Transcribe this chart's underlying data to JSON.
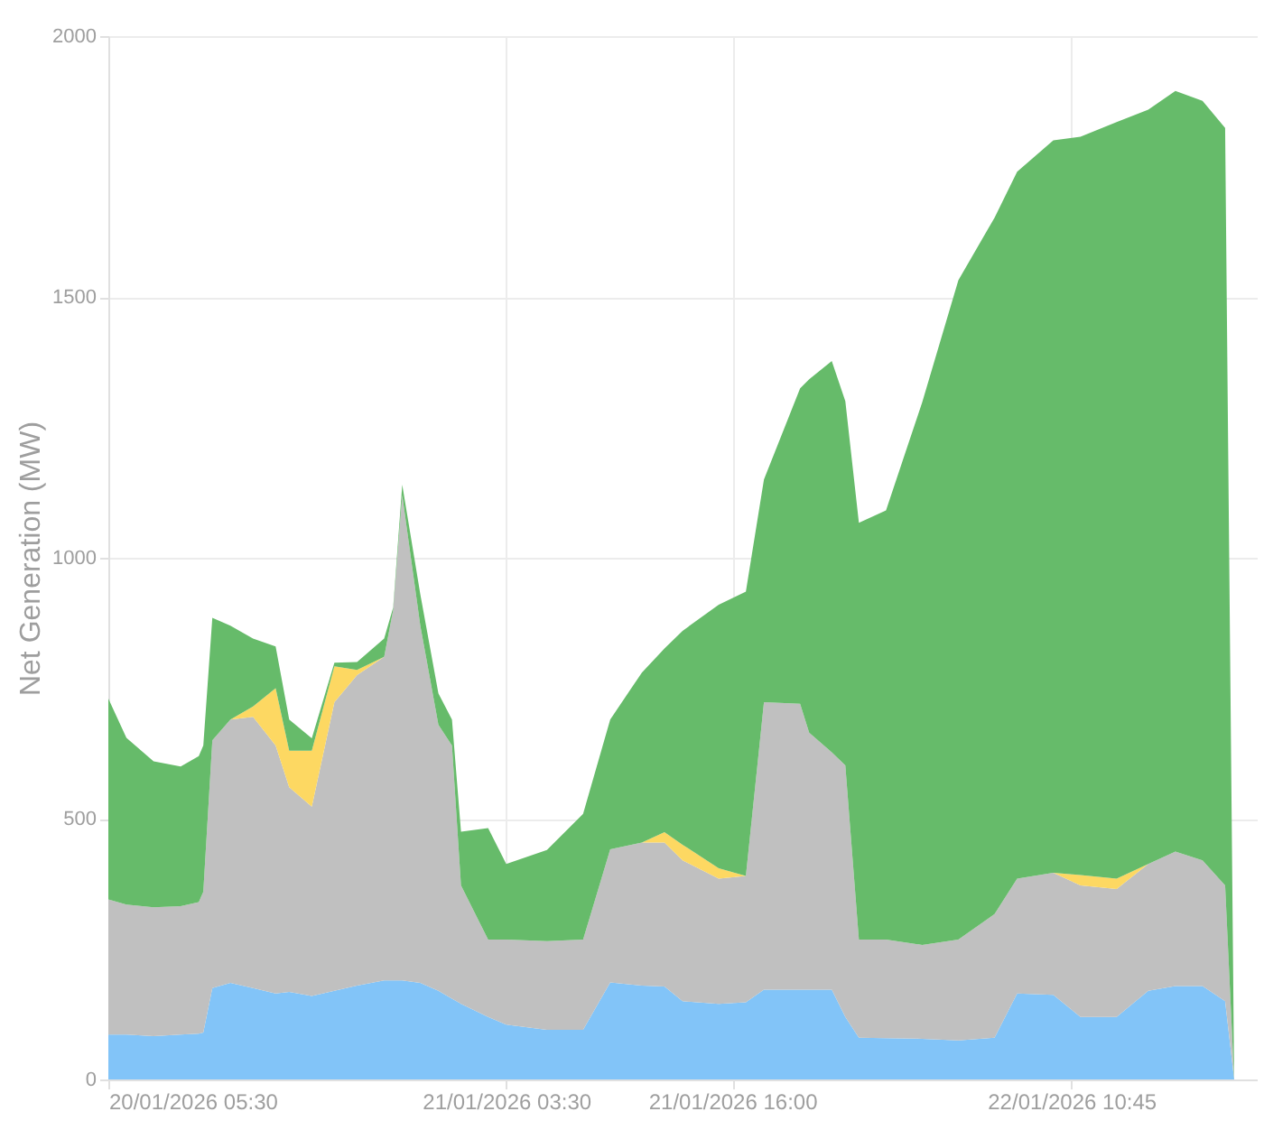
{
  "chart_data": {
    "type": "area",
    "stacked": true,
    "ylabel": "Net Generation (MW)",
    "x": [
      "2026-01-20T05:30",
      "2026-01-20T06:30",
      "2026-01-20T08:00",
      "2026-01-20T09:30",
      "2026-01-20T10:30",
      "2026-01-20T10:45",
      "2026-01-20T11:15",
      "2026-01-20T12:15",
      "2026-01-20T13:30",
      "2026-01-20T14:45",
      "2026-01-20T15:30",
      "2026-01-20T16:45",
      "2026-01-20T18:00",
      "2026-01-20T19:15",
      "2026-01-20T20:45",
      "2026-01-20T21:15",
      "2026-01-20T21:45",
      "2026-01-20T22:45",
      "2026-01-20T23:45",
      "2026-01-21T00:30",
      "2026-01-21T01:00",
      "2026-01-21T02:30",
      "2026-01-21T03:30",
      "2026-01-21T05:45",
      "2026-01-21T07:45",
      "2026-01-21T09:15",
      "2026-01-21T11:00",
      "2026-01-21T12:15",
      "2026-01-21T13:15",
      "2026-01-21T15:15",
      "2026-01-21T16:45",
      "2026-01-21T17:45",
      "2026-01-21T19:45",
      "2026-01-21T20:15",
      "2026-01-21T21:30",
      "2026-01-21T22:15",
      "2026-01-21T23:00",
      "2026-01-22T00:30",
      "2026-01-22T02:30",
      "2026-01-22T04:30",
      "2026-01-22T06:30",
      "2026-01-22T07:45",
      "2026-01-22T09:45",
      "2026-01-22T11:15",
      "2026-01-22T13:15",
      "2026-01-22T15:00",
      "2026-01-22T16:30",
      "2026-01-22T18:00",
      "2026-01-22T19:15",
      "2026-01-22T19:45"
    ],
    "series": [
      {
        "color": "#82c4f8",
        "values": [
          86,
          86,
          83,
          86,
          88,
          90,
          175,
          185,
          175,
          165,
          168,
          160,
          170,
          180,
          190,
          190,
          190,
          185,
          170,
          155,
          145,
          120,
          105,
          95,
          95,
          186,
          180,
          178,
          150,
          145,
          148,
          172,
          172,
          172,
          172,
          120,
          80,
          79,
          78,
          75,
          80,
          165,
          162,
          120,
          120,
          170,
          179,
          179,
          150,
          0
        ]
      },
      {
        "color": "#c0c0c0",
        "values": [
          259,
          249,
          247,
          246,
          252,
          270,
          475,
          505,
          520,
          475,
          392,
          363,
          553,
          595,
          620,
          710,
          930,
          685,
          510,
          485,
          227,
          148,
          163,
          170,
          173,
          255,
          274,
          276,
          270,
          240,
          242,
          551,
          548,
          493,
          455,
          482,
          188,
          189,
          180,
          193,
          237,
          220,
          234,
          252,
          245,
          243,
          258,
          241,
          222,
          0
        ]
      },
      {
        "color": "#fdd862",
        "values": [
          null,
          null,
          null,
          null,
          null,
          null,
          null,
          0,
          20,
          110,
          70,
          107,
          69,
          10,
          0,
          null,
          null,
          null,
          null,
          null,
          null,
          null,
          null,
          null,
          null,
          null,
          0,
          20,
          30,
          20,
          0,
          null,
          null,
          null,
          null,
          null,
          null,
          null,
          null,
          null,
          null,
          null,
          0,
          20,
          20,
          0,
          null,
          null,
          null,
          null
        ]
      },
      {
        "color": "#66bb6a",
        "values": [
          385,
          320,
          280,
          268,
          280,
          280,
          235,
          180,
          130,
          80,
          60,
          24,
          7,
          15,
          35,
          5,
          20,
          60,
          60,
          50,
          103,
          214,
          145,
          175,
          241,
          249,
          326,
          352,
          410,
          505,
          545,
          427,
          605,
          677,
          750,
          698,
          799,
          823,
          1040,
          1264,
          1335,
          1355,
          1404,
          1415,
          1450,
          1446,
          1458,
          1456,
          1452,
          0
        ]
      }
    ],
    "xlim": [
      "2026-01-20T05:30",
      "2026-01-22T21:00"
    ],
    "xticks": [
      {
        "value": "2026-01-20T05:30",
        "label": "20/01/2026 05:30"
      },
      {
        "value": "2026-01-21T03:30",
        "label": "21/01/2026 03:30"
      },
      {
        "value": "2026-01-21T16:00",
        "label": "21/01/2026 16:00"
      },
      {
        "value": "2026-01-22T10:45",
        "label": "22/01/2026 10:45"
      }
    ],
    "ylim": [
      0,
      2000
    ],
    "yticks": [
      0,
      500,
      1000,
      1500,
      2000
    ],
    "grid": true
  }
}
